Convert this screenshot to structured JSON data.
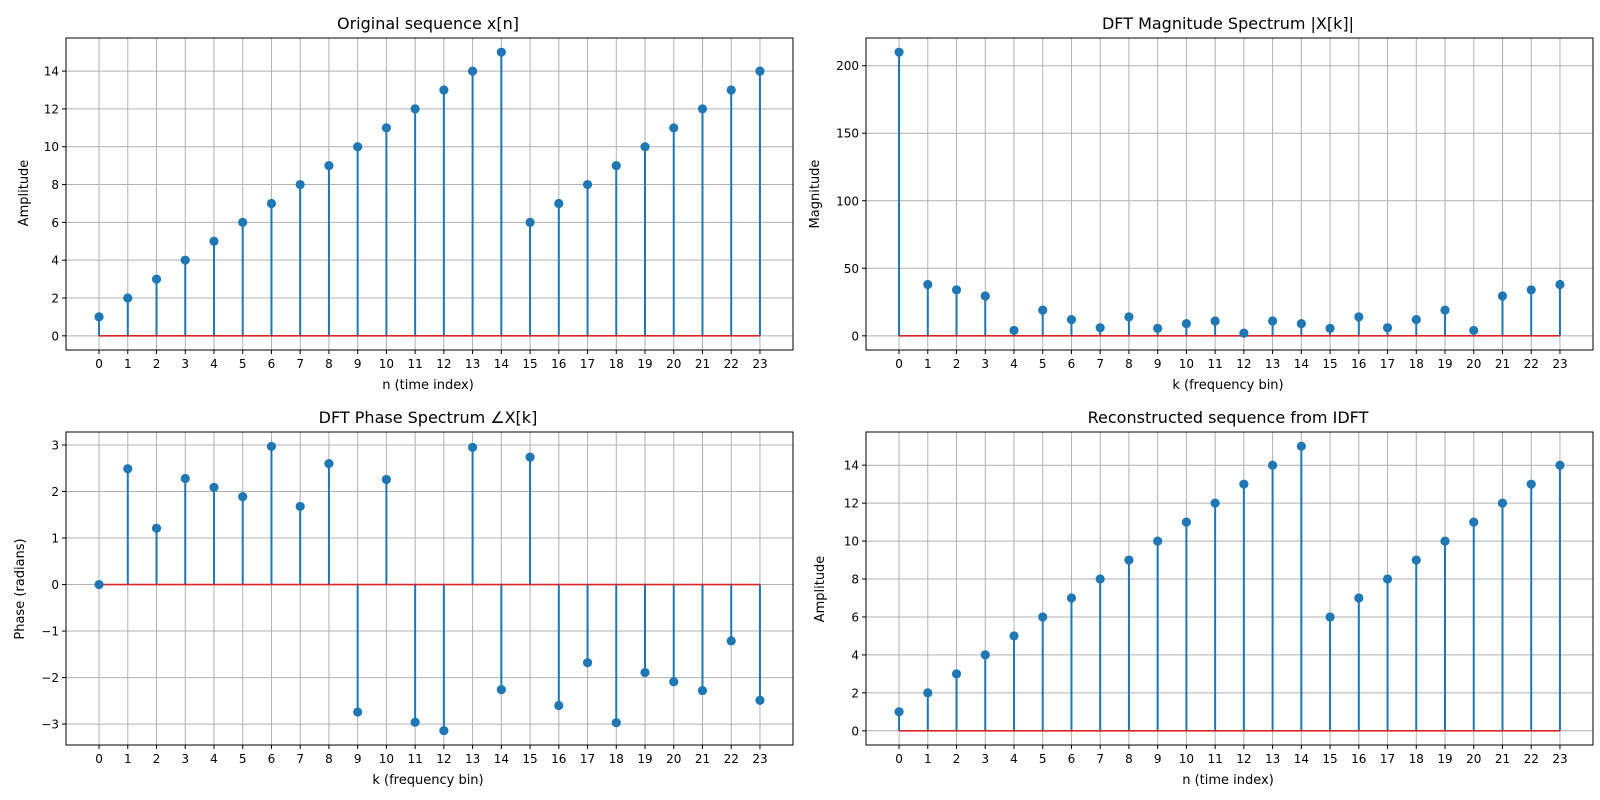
{
  "chart_data": [
    {
      "type": "stem",
      "title": "Original sequence x[n]",
      "xlabel": "n (time index)",
      "ylabel": "Amplitude",
      "x": [
        0,
        1,
        2,
        3,
        4,
        5,
        6,
        7,
        8,
        9,
        10,
        11,
        12,
        13,
        14,
        15,
        16,
        17,
        18,
        19,
        20,
        21,
        22,
        23
      ],
      "values": [
        1,
        2,
        3,
        4,
        5,
        6,
        7,
        8,
        9,
        10,
        11,
        12,
        13,
        14,
        15,
        6,
        7,
        8,
        9,
        10,
        11,
        12,
        13,
        14
      ],
      "xlim": [
        -1.15,
        24.15
      ],
      "ylim": [
        -0.75,
        15.75
      ],
      "xticks": [
        0,
        1,
        2,
        3,
        4,
        5,
        6,
        7,
        8,
        9,
        10,
        11,
        12,
        13,
        14,
        15,
        16,
        17,
        18,
        19,
        20,
        21,
        22,
        23
      ],
      "yticks": [
        0,
        2,
        4,
        6,
        8,
        10,
        12,
        14
      ],
      "ytick_labels": [
        "0",
        "2",
        "4",
        "6",
        "8",
        "10",
        "12",
        "14"
      ],
      "grid": true
    },
    {
      "type": "stem",
      "title": "DFT Magnitude Spectrum |X[k]|",
      "xlabel": "k (frequency bin)",
      "ylabel": "Magnitude",
      "x": [
        0,
        1,
        2,
        3,
        4,
        5,
        6,
        7,
        8,
        9,
        10,
        11,
        12,
        13,
        14,
        15,
        16,
        17,
        18,
        19,
        20,
        21,
        22,
        23
      ],
      "values": [
        210,
        38,
        34,
        29.5,
        4,
        19,
        12,
        6,
        14,
        5.5,
        9,
        11,
        2,
        11,
        9,
        5.5,
        14,
        6,
        12,
        19,
        4,
        29.5,
        34,
        38
      ],
      "xlim": [
        -1.15,
        24.15
      ],
      "ylim": [
        -10.5,
        220.5
      ],
      "xticks": [
        0,
        1,
        2,
        3,
        4,
        5,
        6,
        7,
        8,
        9,
        10,
        11,
        12,
        13,
        14,
        15,
        16,
        17,
        18,
        19,
        20,
        21,
        22,
        23
      ],
      "yticks": [
        0,
        50,
        100,
        150,
        200
      ],
      "ytick_labels": [
        "0",
        "50",
        "100",
        "150",
        "200"
      ],
      "grid": true
    },
    {
      "type": "stem",
      "title": "DFT Phase Spectrum ∠X[k]",
      "xlabel": "k (frequency bin)",
      "ylabel": "Phase (radians)",
      "x": [
        0,
        1,
        2,
        3,
        4,
        5,
        6,
        7,
        8,
        9,
        10,
        11,
        12,
        13,
        14,
        15,
        16,
        17,
        18,
        19,
        20,
        21,
        22,
        23
      ],
      "values": [
        0,
        2.49,
        1.21,
        2.28,
        2.09,
        1.89,
        2.97,
        1.68,
        2.6,
        -2.74,
        2.26,
        -2.96,
        -3.14,
        2.95,
        -2.26,
        2.74,
        -2.6,
        -1.68,
        -2.97,
        -1.89,
        -2.09,
        -2.28,
        -1.21,
        -2.49
      ],
      "xlim": [
        -1.15,
        24.15
      ],
      "ylim": [
        -3.45,
        3.28
      ],
      "xticks": [
        0,
        1,
        2,
        3,
        4,
        5,
        6,
        7,
        8,
        9,
        10,
        11,
        12,
        13,
        14,
        15,
        16,
        17,
        18,
        19,
        20,
        21,
        22,
        23
      ],
      "yticks": [
        -3,
        -2,
        -1,
        0,
        1,
        2,
        3
      ],
      "ytick_labels": [
        "−3",
        "−2",
        "−1",
        "0",
        "1",
        "2",
        "3"
      ],
      "grid": true
    },
    {
      "type": "stem",
      "title": "Reconstructed sequence from IDFT",
      "xlabel": "n (time index)",
      "ylabel": "Amplitude",
      "x": [
        0,
        1,
        2,
        3,
        4,
        5,
        6,
        7,
        8,
        9,
        10,
        11,
        12,
        13,
        14,
        15,
        16,
        17,
        18,
        19,
        20,
        21,
        22,
        23
      ],
      "values": [
        1,
        2,
        3,
        4,
        5,
        6,
        7,
        8,
        9,
        10,
        11,
        12,
        13,
        14,
        15,
        6,
        7,
        8,
        9,
        10,
        11,
        12,
        13,
        14
      ],
      "xlim": [
        -1.15,
        24.15
      ],
      "ylim": [
        -0.75,
        15.75
      ],
      "xticks": [
        0,
        1,
        2,
        3,
        4,
        5,
        6,
        7,
        8,
        9,
        10,
        11,
        12,
        13,
        14,
        15,
        16,
        17,
        18,
        19,
        20,
        21,
        22,
        23
      ],
      "yticks": [
        0,
        2,
        4,
        6,
        8,
        10,
        12,
        14
      ],
      "ytick_labels": [
        "0",
        "2",
        "4",
        "6",
        "8",
        "10",
        "12",
        "14"
      ],
      "grid": true
    }
  ],
  "colors": {
    "stem": "#1f77b4",
    "baseline": "#d62728",
    "grid": "#b0b0b0",
    "axes": "#000000"
  }
}
